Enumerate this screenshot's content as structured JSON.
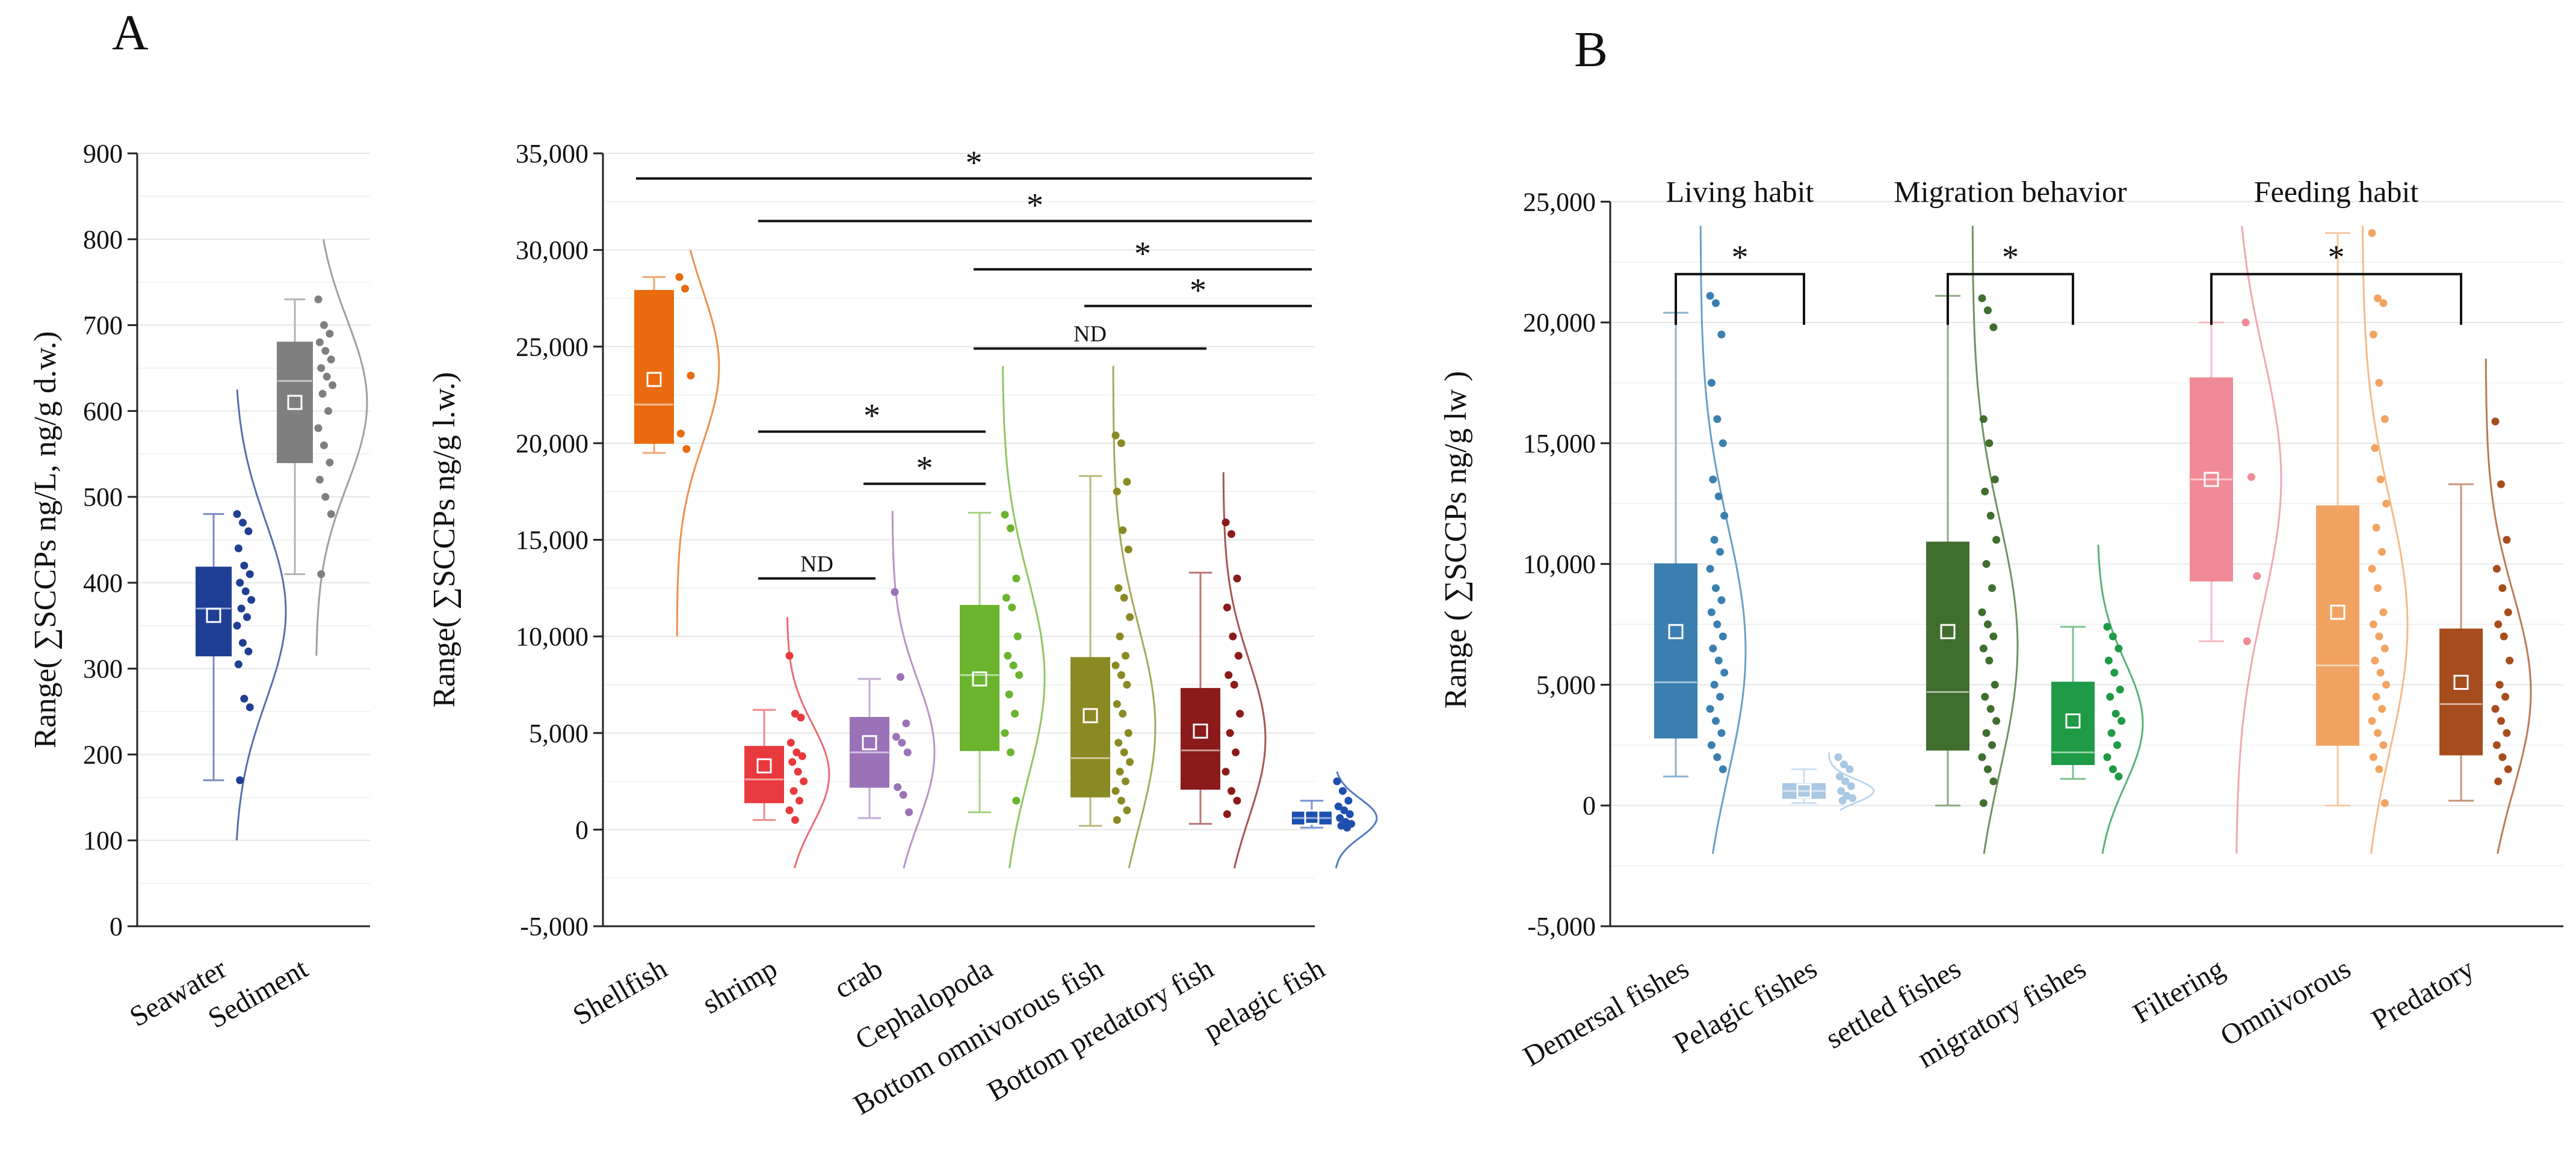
{
  "panels": {
    "a": "A",
    "b": "B"
  },
  "chart_data": [
    {
      "id": "a1",
      "type": "box",
      "ylabel": "Range( ∑SCCPs ng/L, ng/g d.w.)",
      "ylim": [
        0,
        900
      ],
      "yticks": [
        0,
        100,
        200,
        300,
        400,
        500,
        600,
        700,
        800,
        900
      ],
      "ytick_labels": [
        "0",
        "100",
        "200",
        "300",
        "400",
        "500",
        "600",
        "700",
        "800",
        "900"
      ],
      "categories": [
        "Seawater",
        "Sediment"
      ],
      "colors": [
        "#1f3f94",
        "#7f7f7f"
      ],
      "boxes": [
        {
          "min": 170,
          "q1": 315,
          "median": 370,
          "q3": 418,
          "max": 480,
          "mean": 362
        },
        {
          "min": 410,
          "q1": 540,
          "median": 635,
          "q3": 680,
          "max": 730,
          "mean": 610
        }
      ],
      "points": [
        [
          480,
          470,
          460,
          440,
          420,
          410,
          400,
          390,
          380,
          370,
          360,
          350,
          330,
          320,
          305,
          265,
          255,
          170
        ],
        [
          730,
          700,
          690,
          680,
          670,
          660,
          650,
          640,
          630,
          620,
          600,
          580,
          560,
          540,
          520,
          500,
          480,
          410
        ]
      ],
      "density_range": [
        [
          100,
          625
        ],
        [
          315,
          800
        ]
      ]
    },
    {
      "id": "a2",
      "type": "box",
      "ylabel": "Range( ∑SCCPs  ng/g l.w.)",
      "ylim": [
        -5000,
        35000
      ],
      "yticks": [
        -5000,
        0,
        5000,
        10000,
        15000,
        20000,
        25000,
        30000,
        35000
      ],
      "ytick_labels": [
        "-5,000",
        "0",
        "5,000",
        "10,000",
        "15,000",
        "20,000",
        "25,000",
        "30,000",
        "35,000"
      ],
      "categories": [
        "Shellfish",
        "shrimp",
        "crab",
        "Cephalopoda",
        "Bottom omnivorous fish",
        "Bottom predatory fish",
        "pelagic fish"
      ],
      "colors": [
        "#ea6a10",
        "#e8393e",
        "#9b72b8",
        "#6ab42e",
        "#8a8a24",
        "#8b1a1a",
        "#1d4fae"
      ],
      "boxes": [
        {
          "min": 19500,
          "q1": 20000,
          "median": 22000,
          "q3": 27900,
          "max": 28600,
          "mean": 23300
        },
        {
          "min": 500,
          "q1": 1400,
          "median": 2600,
          "q3": 4300,
          "max": 6200,
          "mean": 3300
        },
        {
          "min": 600,
          "q1": 2200,
          "median": 4000,
          "q3": 5800,
          "max": 7800,
          "mean": 4500
        },
        {
          "min": 900,
          "q1": 4100,
          "median": 8000,
          "q3": 11600,
          "max": 16400,
          "mean": 7800
        },
        {
          "min": 200,
          "q1": 1700,
          "median": 3700,
          "q3": 8900,
          "max": 18300,
          "mean": 5900
        },
        {
          "min": 300,
          "q1": 2100,
          "median": 4100,
          "q3": 7300,
          "max": 13300,
          "mean": 5100
        },
        {
          "min": 100,
          "q1": 300,
          "median": 600,
          "q3": 900,
          "max": 1500,
          "mean": 650
        }
      ],
      "points": [
        [
          28600,
          28000,
          23500,
          20500,
          19700
        ],
        [
          9000,
          6000,
          5800,
          4500,
          4000,
          3800,
          3500,
          3000,
          2500,
          2000,
          1500,
          1000,
          500
        ],
        [
          12300,
          7900,
          5500,
          4800,
          4500,
          4000,
          2200,
          1800,
          900
        ],
        [
          16300,
          15600,
          13000,
          12000,
          11500,
          10000,
          9000,
          8500,
          8000,
          7000,
          6000,
          5000,
          4000,
          1500
        ],
        [
          20400,
          20000,
          18000,
          17500,
          15500,
          14500,
          12500,
          12000,
          11000,
          10000,
          9000,
          8500,
          8000,
          7500,
          6500,
          6000,
          5000,
          4500,
          4000,
          3500,
          3000,
          2500,
          2000,
          1500,
          1000,
          500
        ],
        [
          15900,
          15300,
          13000,
          11500,
          10000,
          9000,
          8000,
          7500,
          6000,
          5000,
          4000,
          3000,
          2000,
          1500,
          800
        ],
        [
          2500,
          2000,
          1500,
          1200,
          1000,
          800,
          600,
          400,
          300,
          200,
          100
        ]
      ],
      "density_range": [
        [
          10000,
          30000
        ],
        [
          -2000,
          11000
        ],
        [
          -2000,
          16500
        ],
        [
          -2000,
          24000
        ],
        [
          -2000,
          24000
        ],
        [
          -2000,
          18500
        ],
        [
          -2000,
          3000
        ]
      ],
      "significance": [
        {
          "from": 0,
          "to": 6,
          "y": 33700,
          "label": "*"
        },
        {
          "from": 1,
          "to": 6,
          "y": 31500,
          "label": "*"
        },
        {
          "from": 3,
          "to": 6,
          "y": 29000,
          "label": "*"
        },
        {
          "from": 4,
          "to": 6,
          "y": 27100,
          "label": "*"
        },
        {
          "from": 3,
          "to": 5,
          "y": 24900,
          "label": "ND"
        },
        {
          "from": 1,
          "to": 3,
          "y": 20600,
          "label": "*"
        },
        {
          "from": 2,
          "to": 3,
          "y": 17900,
          "label": "*"
        },
        {
          "from": 1,
          "to": 2,
          "y": 13000,
          "label": "ND"
        }
      ]
    },
    {
      "id": "b",
      "type": "box",
      "ylabel": "Range ( ∑SCCPs ng/g lw )",
      "ylim": [
        -5000,
        27000
      ],
      "yticks": [
        -5000,
        0,
        5000,
        10000,
        15000,
        20000,
        25000
      ],
      "ytick_labels": [
        "-5,000",
        "0",
        "5,000",
        "10,000",
        "15,000",
        "20,000",
        "25,000"
      ],
      "categories": [
        "Demersal fishes",
        "Pelagic fishes",
        "settled fishes",
        "migratory fishes",
        "Filtering",
        "Omnivorous",
        "Predatory"
      ],
      "colors": [
        "#3a7fb0",
        "#a9c8e3",
        "#3f6e2e",
        "#1f9a46",
        "#f08a96",
        "#f1a462",
        "#a64d1e"
      ],
      "boxes": [
        {
          "min": 1200,
          "q1": 2800,
          "median": 5100,
          "q3": 10000,
          "max": 20400,
          "mean": 7200
        },
        {
          "min": 100,
          "q1": 300,
          "median": 600,
          "q3": 900,
          "max": 1500,
          "mean": 600
        },
        {
          "min": 0,
          "q1": 2300,
          "median": 4700,
          "q3": 10900,
          "max": 21100,
          "mean": 7200
        },
        {
          "min": 1100,
          "q1": 1700,
          "median": 2200,
          "q3": 5100,
          "max": 7400,
          "mean": 3500
        },
        {
          "min": 6800,
          "q1": 9300,
          "median": 13500,
          "q3": 17700,
          "max": 20000,
          "mean": 13500
        },
        {
          "min": 0,
          "q1": 2500,
          "median": 5800,
          "q3": 12400,
          "max": 23700,
          "mean": 8000
        },
        {
          "min": 200,
          "q1": 2100,
          "median": 4200,
          "q3": 7300,
          "max": 13300,
          "mean": 5100
        }
      ],
      "points": [
        [
          21100,
          20800,
          19500,
          17500,
          16000,
          15000,
          13500,
          12800,
          12000,
          11000,
          10500,
          9800,
          9000,
          8500,
          8000,
          7500,
          7000,
          6500,
          6000,
          5500,
          5000,
          4500,
          4000,
          3500,
          3000,
          2500,
          2000,
          1500
        ],
        [
          2000,
          1700,
          1500,
          1200,
          1000,
          800,
          600,
          400,
          300,
          200
        ],
        [
          21000,
          20500,
          19800,
          16000,
          15000,
          13500,
          13000,
          12000,
          11000,
          10000,
          9000,
          8000,
          7500,
          7000,
          6500,
          6000,
          5000,
          4500,
          4000,
          3500,
          3000,
          2500,
          2000,
          1500,
          1000,
          100
        ],
        [
          7400,
          7000,
          6500,
          6000,
          5500,
          4800,
          4500,
          3800,
          3500,
          3000,
          2500,
          2000,
          1500,
          1200
        ],
        [
          20000,
          13600,
          9500,
          6800
        ],
        [
          23700,
          21000,
          20800,
          19500,
          17500,
          16000,
          14800,
          13500,
          12500,
          11500,
          10500,
          9800,
          9000,
          8000,
          7500,
          7000,
          6500,
          6000,
          5500,
          5000,
          4500,
          4000,
          3500,
          3000,
          2500,
          2000,
          1500,
          100
        ],
        [
          15900,
          13300,
          11000,
          9800,
          9000,
          8000,
          7500,
          7000,
          6000,
          5000,
          4500,
          4000,
          3500,
          3000,
          2500,
          2000,
          1500,
          1000
        ]
      ],
      "density_range": [
        [
          -2000,
          24000
        ],
        [
          -200,
          2200
        ],
        [
          -2000,
          24000
        ],
        [
          -2000,
          10800
        ],
        [
          -2000,
          24000
        ],
        [
          -2000,
          24000
        ],
        [
          -2000,
          18500
        ]
      ],
      "groups": [
        {
          "label": "Living habit",
          "from": 0,
          "to": 1,
          "y": 25000,
          "sig": "*"
        },
        {
          "label": "Migration behavior",
          "from": 2,
          "to": 3,
          "y": 25000,
          "sig": "*"
        },
        {
          "label": "Feeding habit",
          "from": 4,
          "to": 6,
          "y": 25000,
          "sig": "*"
        }
      ]
    }
  ]
}
